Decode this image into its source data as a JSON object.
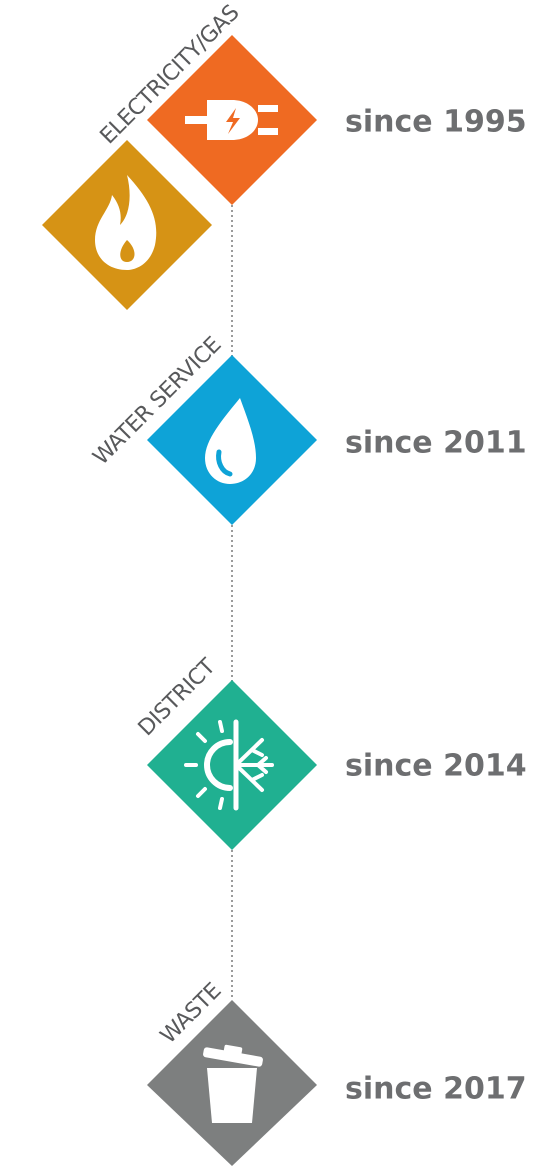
{
  "items": [
    {
      "label": "ELECTRICITY/GAS",
      "since": "since 1995"
    },
    {
      "label": "WATER SERVICE",
      "since": "since 2011"
    },
    {
      "label": "DISTRICT",
      "since": "since 2014"
    },
    {
      "label": "WASTE",
      "since": "since 2017"
    }
  ]
}
